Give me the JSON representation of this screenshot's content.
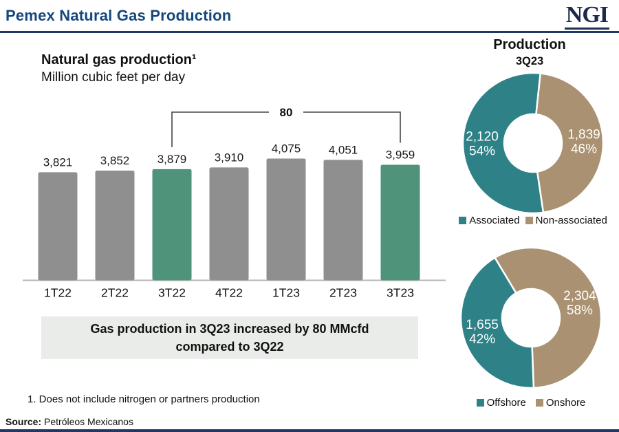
{
  "header": {
    "title": "Pemex Natural Gas Production",
    "logo_text": "NGI"
  },
  "colors": {
    "title_blue": "#14477C",
    "navy": "#1F3864",
    "logo_navy": "#1B2A4C",
    "bar_gray": "#8F8F8F",
    "bar_green": "#4F937B",
    "teal": "#2E8187",
    "tan": "#A99171",
    "note_bg": "#E9ECE9",
    "axis_gray": "#B5B5B5",
    "text_dark": "#1A1A1A"
  },
  "chart_data": [
    {
      "type": "bar",
      "title": "Natural gas production¹",
      "subtitle": "Million cubic feet per day",
      "categories": [
        "1T22",
        "2T22",
        "3T22",
        "4T22",
        "1T23",
        "2T23",
        "3T23"
      ],
      "values": [
        3821,
        3852,
        3879,
        3910,
        4075,
        4051,
        3959
      ],
      "value_labels": [
        "3,821",
        "3,852",
        "3,879",
        "3,910",
        "4,075",
        "4,051",
        "3,959"
      ],
      "highlight_indices": [
        2,
        6
      ],
      "bar_color_key": "bar_gray",
      "highlight_color_key": "bar_green",
      "grid": "off",
      "annotation": {
        "label": "80",
        "from_category": "3T22",
        "to_category": "3T23"
      }
    },
    {
      "type": "pie",
      "donut": true,
      "title": "Production",
      "subtitle": "3Q23",
      "start_angle_deg": 6,
      "segments": [
        {
          "name": "Non-associated",
          "value": 1839,
          "value_label": "1,839",
          "pct": 46,
          "pct_label": "46%",
          "color": "tan"
        },
        {
          "name": "Associated",
          "value": 2120,
          "value_label": "2,120",
          "pct": 54,
          "pct_label": "54%",
          "color": "teal"
        }
      ],
      "legend": [
        {
          "label": "Associated",
          "color": "teal"
        },
        {
          "label": "Non-associated",
          "color": "tan"
        }
      ],
      "legend_position": "bottom"
    },
    {
      "type": "pie",
      "donut": true,
      "start_angle_deg": -31,
      "segments": [
        {
          "name": "Onshore",
          "value": 2304,
          "value_label": "2,304",
          "pct": 58,
          "pct_label": "58%",
          "color": "tan"
        },
        {
          "name": "Offshore",
          "value": 1655,
          "value_label": "1,655",
          "pct": 42,
          "pct_label": "42%",
          "color": "teal"
        }
      ],
      "legend": [
        {
          "label": "Offshore",
          "color": "teal"
        },
        {
          "label": "Onshore",
          "color": "tan"
        }
      ],
      "legend_position": "bottom"
    }
  ],
  "note_box": {
    "line1": "Gas production in 3Q23 increased by 80 MMcfd",
    "line2": "compared to 3Q22"
  },
  "footnote": "1. Does not include nitrogen or partners production",
  "source": {
    "label": "Source:",
    "text": " Petróleos Mexicanos"
  }
}
